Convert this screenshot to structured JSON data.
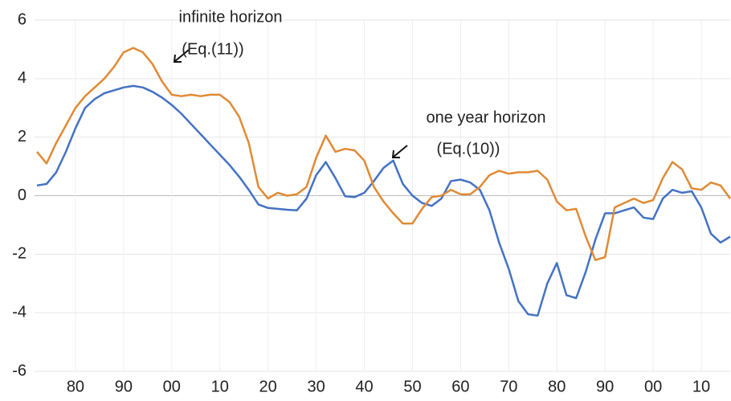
{
  "chart_data": {
    "type": "line",
    "x": [
      1872,
      1874,
      1876,
      1878,
      1880,
      1882,
      1884,
      1886,
      1888,
      1890,
      1892,
      1894,
      1896,
      1898,
      1900,
      1902,
      1904,
      1906,
      1908,
      1910,
      1912,
      1914,
      1916,
      1918,
      1920,
      1922,
      1924,
      1926,
      1928,
      1930,
      1932,
      1934,
      1936,
      1938,
      1940,
      1942,
      1944,
      1946,
      1948,
      1950,
      1952,
      1954,
      1956,
      1958,
      1960,
      1962,
      1964,
      1966,
      1968,
      1970,
      1972,
      1974,
      1976,
      1978,
      1980,
      1982,
      1984,
      1986,
      1988,
      1990,
      1992,
      1994,
      1996,
      1998,
      2000,
      2002,
      2004,
      2006,
      2008,
      2010,
      2012,
      2014,
      2016
    ],
    "series": [
      {
        "color": "#4472c4",
        "values": [
          0.35,
          0.4,
          0.8,
          1.5,
          2.3,
          3.0,
          3.3,
          3.5,
          3.6,
          3.7,
          3.75,
          3.7,
          3.55,
          3.35,
          3.1,
          2.8,
          2.45,
          2.1,
          1.75,
          1.4,
          1.05,
          0.65,
          0.2,
          -0.3,
          -0.42,
          -0.45,
          -0.48,
          -0.5,
          -0.1,
          0.7,
          1.15,
          0.6,
          -0.02,
          -0.05,
          0.1,
          0.5,
          0.95,
          1.2,
          0.4,
          0.0,
          -0.25,
          -0.35,
          -0.1,
          0.5,
          0.55,
          0.45,
          0.2,
          -0.5,
          -1.6,
          -2.5,
          -3.6,
          -4.05,
          -4.1,
          -3.0,
          -2.3,
          -3.4,
          -3.5,
          -2.6,
          -1.5,
          -0.6,
          -0.6,
          -0.5,
          -0.4,
          -0.75,
          -0.8,
          -0.1,
          0.2,
          0.1,
          0.15,
          -0.4,
          -1.3,
          -1.6,
          -1.4
        ]
      },
      {
        "color": "#e08a35",
        "values": [
          1.5,
          1.1,
          1.8,
          2.4,
          3.0,
          3.4,
          3.7,
          4.0,
          4.4,
          4.9,
          5.05,
          4.9,
          4.5,
          3.9,
          3.45,
          3.4,
          3.45,
          3.4,
          3.45,
          3.45,
          3.2,
          2.7,
          1.8,
          0.3,
          -0.1,
          0.1,
          0.0,
          0.05,
          0.3,
          1.3,
          2.05,
          1.5,
          1.6,
          1.55,
          1.2,
          0.3,
          -0.2,
          -0.6,
          -0.95,
          -0.95,
          -0.45,
          -0.05,
          0.0,
          0.2,
          0.05,
          0.05,
          0.3,
          0.7,
          0.85,
          0.75,
          0.8,
          0.8,
          0.85,
          0.55,
          -0.2,
          -0.5,
          -0.45,
          -1.4,
          -2.2,
          -2.1,
          -0.4,
          -0.25,
          -0.1,
          -0.25,
          -0.15,
          0.6,
          1.15,
          0.9,
          0.25,
          0.2,
          0.45,
          0.35,
          -0.1
        ]
      }
    ],
    "xlim": [
      1871.5,
      2016
    ],
    "xticks": [
      {
        "value": 1880,
        "label": "80"
      },
      {
        "value": 1890,
        "label": "90"
      },
      {
        "value": 1900,
        "label": "00"
      },
      {
        "value": 1910,
        "label": "10"
      },
      {
        "value": 1920,
        "label": "20"
      },
      {
        "value": 1930,
        "label": "30"
      },
      {
        "value": 1940,
        "label": "40"
      },
      {
        "value": 1950,
        "label": "50"
      },
      {
        "value": 1960,
        "label": "60"
      },
      {
        "value": 1970,
        "label": "70"
      },
      {
        "value": 1980,
        "label": "80"
      },
      {
        "value": 1990,
        "label": "90"
      },
      {
        "value": 2000,
        "label": "00"
      },
      {
        "value": 2010,
        "label": "10"
      }
    ],
    "ylim": [
      -6,
      6
    ],
    "yticks": [
      -6,
      -4,
      -2,
      0,
      2,
      4,
      6
    ],
    "grid": true,
    "annotations": [
      "infinite horizon",
      "(Eq.(11))",
      "one year horizon",
      "(Eq.(10))"
    ]
  }
}
